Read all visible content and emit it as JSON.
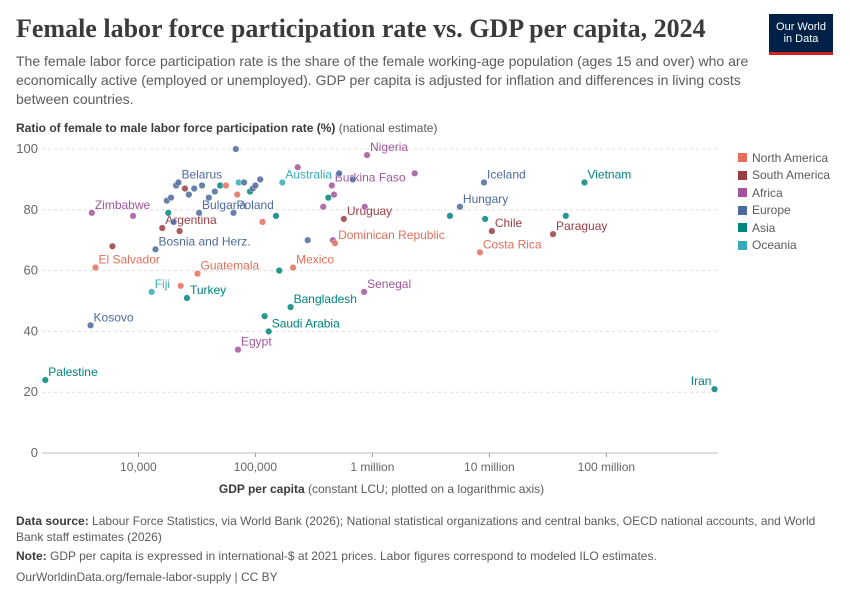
{
  "header": {
    "title": "Female labor force participation rate vs. GDP per capita, 2024",
    "subtitle": "The female labor force participation rate is the share of the female working-age population (ages 15 and over) who are economically active (employed or unemployed). GDP per capita is adjusted for inflation and differences in living costs between countries.",
    "logo_line1": "Our World",
    "logo_line2": "in Data"
  },
  "colors": {
    "North America": "#e56e5a",
    "South America": "#9a3e44",
    "Africa": "#a2559c",
    "Europe": "#4c6a9c",
    "Asia": "#00847e",
    "Oceania": "#38aaba"
  },
  "chart_data": {
    "type": "scatter",
    "title": "Female labor force participation rate vs. GDP per capita, 2024",
    "ylabel_bold": "Ratio of female to male labor force participation rate (%)",
    "ylabel_rest": "(national estimate)",
    "xlabel_bold": "GDP per capita",
    "xlabel_rest": "(constant LCU; plotted on a logarithmic axis)",
    "xscale": "log",
    "xlim": [
      1500,
      900000000
    ],
    "ylim": [
      0,
      100
    ],
    "grid": "horizontal dashed",
    "yticks": [
      0,
      20,
      40,
      60,
      80,
      100
    ],
    "xticks": [
      {
        "value": 10000,
        "label": "10,000"
      },
      {
        "value": 100000,
        "label": "100,000"
      },
      {
        "value": 1000000,
        "label": "1 million"
      },
      {
        "value": 10000000,
        "label": "10 million"
      },
      {
        "value": 100000000,
        "label": "100 million"
      }
    ],
    "legend_position": "right",
    "legend": [
      "North America",
      "South America",
      "Africa",
      "Europe",
      "Asia",
      "Oceania"
    ],
    "points": [
      {
        "x": 1600,
        "y": 24,
        "region": "Asia",
        "label": "Palestine"
      },
      {
        "x": 3900,
        "y": 42,
        "region": "Europe",
        "label": "Kosovo"
      },
      {
        "x": 4000,
        "y": 79,
        "region": "Africa",
        "label": "Zimbabwe"
      },
      {
        "x": 4300,
        "y": 61,
        "region": "North America",
        "label": "El Salvador"
      },
      {
        "x": 6000,
        "y": 68,
        "region": "South America",
        "label": ""
      },
      {
        "x": 9000,
        "y": 78,
        "region": "Africa",
        "label": ""
      },
      {
        "x": 13000,
        "y": 53,
        "region": "Oceania",
        "label": "Fiji"
      },
      {
        "x": 14000,
        "y": 67,
        "region": "Europe",
        "label": "Bosnia and Herz."
      },
      {
        "x": 16000,
        "y": 74,
        "region": "South America",
        "label": "Argentina"
      },
      {
        "x": 17500,
        "y": 83,
        "region": "Europe",
        "label": ""
      },
      {
        "x": 18000,
        "y": 79,
        "region": "Asia",
        "label": ""
      },
      {
        "x": 19000,
        "y": 84,
        "region": "Europe",
        "label": ""
      },
      {
        "x": 20000,
        "y": 76,
        "region": "Europe",
        "label": ""
      },
      {
        "x": 21000,
        "y": 88,
        "region": "Europe",
        "label": ""
      },
      {
        "x": 22000,
        "y": 89,
        "region": "Europe",
        "label": "Belarus"
      },
      {
        "x": 22500,
        "y": 73,
        "region": "South America",
        "label": ""
      },
      {
        "x": 23000,
        "y": 55,
        "region": "North America",
        "label": ""
      },
      {
        "x": 25000,
        "y": 87,
        "region": "South America",
        "label": ""
      },
      {
        "x": 26000,
        "y": 51,
        "region": "Asia",
        "label": "Turkey"
      },
      {
        "x": 27000,
        "y": 85,
        "region": "Europe",
        "label": ""
      },
      {
        "x": 30000,
        "y": 87,
        "region": "Europe",
        "label": ""
      },
      {
        "x": 32000,
        "y": 59,
        "region": "North America",
        "label": "Guatemala"
      },
      {
        "x": 33000,
        "y": 79,
        "region": "Europe",
        "label": "Bulgaria"
      },
      {
        "x": 35000,
        "y": 88,
        "region": "Europe",
        "label": ""
      },
      {
        "x": 40000,
        "y": 84,
        "region": "Europe",
        "label": ""
      },
      {
        "x": 45000,
        "y": 86,
        "region": "Europe",
        "label": ""
      },
      {
        "x": 50000,
        "y": 88,
        "region": "Asia",
        "label": ""
      },
      {
        "x": 56000,
        "y": 88,
        "region": "North America",
        "label": ""
      },
      {
        "x": 65000,
        "y": 79,
        "region": "Europe",
        "label": "Poland"
      },
      {
        "x": 68000,
        "y": 100,
        "region": "Europe",
        "label": ""
      },
      {
        "x": 70000,
        "y": 85,
        "region": "North America",
        "label": ""
      },
      {
        "x": 71000,
        "y": 34,
        "region": "Africa",
        "label": "Egypt"
      },
      {
        "x": 72000,
        "y": 89,
        "region": "Oceania",
        "label": ""
      },
      {
        "x": 80000,
        "y": 89,
        "region": "Europe",
        "label": ""
      },
      {
        "x": 90000,
        "y": 86,
        "region": "Asia",
        "label": ""
      },
      {
        "x": 95000,
        "y": 87,
        "region": "Europe",
        "label": ""
      },
      {
        "x": 100000,
        "y": 88,
        "region": "Europe",
        "label": ""
      },
      {
        "x": 110000,
        "y": 90,
        "region": "Europe",
        "label": ""
      },
      {
        "x": 115000,
        "y": 76,
        "region": "North America",
        "label": ""
      },
      {
        "x": 120000,
        "y": 45,
        "region": "Asia",
        "label": ""
      },
      {
        "x": 130000,
        "y": 40,
        "region": "Asia",
        "label": "Saudi Arabia"
      },
      {
        "x": 150000,
        "y": 78,
        "region": "Asia",
        "label": ""
      },
      {
        "x": 160000,
        "y": 60,
        "region": "Asia",
        "label": ""
      },
      {
        "x": 170000,
        "y": 89,
        "region": "Oceania",
        "label": "Australia"
      },
      {
        "x": 200000,
        "y": 48,
        "region": "Asia",
        "label": "Bangladesh"
      },
      {
        "x": 210000,
        "y": 61,
        "region": "North America",
        "label": "Mexico"
      },
      {
        "x": 230000,
        "y": 94,
        "region": "Africa",
        "label": ""
      },
      {
        "x": 280000,
        "y": 70,
        "region": "Europe",
        "label": ""
      },
      {
        "x": 380000,
        "y": 81,
        "region": "Africa",
        "label": ""
      },
      {
        "x": 420000,
        "y": 84,
        "region": "Asia",
        "label": ""
      },
      {
        "x": 450000,
        "y": 88,
        "region": "Africa",
        "label": "Burkina Faso"
      },
      {
        "x": 460000,
        "y": 70,
        "region": "Africa",
        "label": ""
      },
      {
        "x": 470000,
        "y": 85,
        "region": "Africa",
        "label": ""
      },
      {
        "x": 480000,
        "y": 69,
        "region": "North America",
        "label": "Dominican Republic"
      },
      {
        "x": 520000,
        "y": 92,
        "region": "Europe",
        "label": ""
      },
      {
        "x": 570000,
        "y": 77,
        "region": "South America",
        "label": "Uruguay"
      },
      {
        "x": 680000,
        "y": 90,
        "region": "Europe",
        "label": ""
      },
      {
        "x": 850000,
        "y": 53,
        "region": "Africa",
        "label": "Senegal"
      },
      {
        "x": 860000,
        "y": 81,
        "region": "Africa",
        "label": ""
      },
      {
        "x": 900000,
        "y": 98,
        "region": "Africa",
        "label": "Nigeria"
      },
      {
        "x": 2300000,
        "y": 92,
        "region": "Africa",
        "label": ""
      },
      {
        "x": 4600000,
        "y": 78,
        "region": "Asia",
        "label": ""
      },
      {
        "x": 5600000,
        "y": 81,
        "region": "Europe",
        "label": "Hungary"
      },
      {
        "x": 8300000,
        "y": 66,
        "region": "North America",
        "label": "Costa Rica"
      },
      {
        "x": 9000000,
        "y": 89,
        "region": "Europe",
        "label": "Iceland"
      },
      {
        "x": 9200000,
        "y": 77,
        "region": "Asia",
        "label": ""
      },
      {
        "x": 10500000,
        "y": 73,
        "region": "South America",
        "label": "Chile"
      },
      {
        "x": 35000000,
        "y": 72,
        "region": "South America",
        "label": "Paraguay"
      },
      {
        "x": 45000000,
        "y": 78,
        "region": "Asia",
        "label": ""
      },
      {
        "x": 65000000,
        "y": 89,
        "region": "Asia",
        "label": "Vietnam"
      },
      {
        "x": 840000000,
        "y": 21,
        "region": "Asia",
        "label": "Iran"
      }
    ]
  },
  "footer": {
    "source_label": "Data source:",
    "source_text": "Labour Force Statistics, via World Bank (2026); National statistical organizations and central banks, OECD national accounts, and World Bank staff estimates (2026)",
    "note_label": "Note:",
    "note_text": "GDP per capita is expressed in international-$ at 2021 prices. Labor figures correspond to modeled ILO estimates.",
    "url": "OurWorldinData.org/female-labor-supply | CC BY"
  }
}
